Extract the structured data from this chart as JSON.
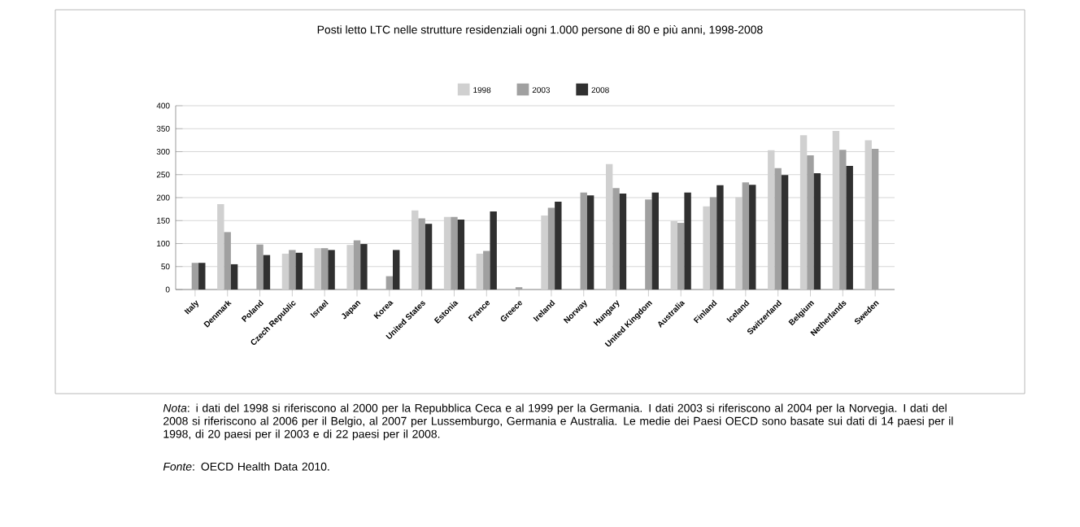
{
  "chart_data": {
    "type": "bar",
    "title": "Posti letto LTC nelle strutture residenziali ogni 1.000 persone di 80 e più anni, 1998-2008",
    "categories": [
      "Italy",
      "Denmark",
      "Poland",
      "Czech Republic",
      "Israel",
      "Japan",
      "Korea",
      "United States",
      "Estonia",
      "France",
      "Greece",
      "Ireland",
      "Norway",
      "Hungary",
      "United Kingdom",
      "Australia",
      "Finland",
      "Iceland",
      "Switzerland",
      "Belgium",
      "Netherlands",
      "Sweden"
    ],
    "series": [
      {
        "name": "1998",
        "color": "#d0d0d0",
        "values": [
          null,
          186,
          null,
          78,
          90,
          97,
          null,
          172,
          158,
          78,
          null,
          161,
          null,
          273,
          null,
          149,
          181,
          201,
          303,
          336,
          345,
          325
        ]
      },
      {
        "name": "2003",
        "color": "#a0a0a0",
        "values": [
          58,
          125,
          98,
          86,
          90,
          107,
          29,
          155,
          158,
          84,
          5,
          178,
          211,
          221,
          196,
          145,
          201,
          233,
          264,
          292,
          304,
          306
        ]
      },
      {
        "name": "2008",
        "color": "#303030",
        "values": [
          58,
          55,
          75,
          80,
          86,
          99,
          86,
          143,
          152,
          170,
          null,
          191,
          205,
          209,
          211,
          211,
          227,
          228,
          249,
          253,
          269,
          null
        ]
      }
    ],
    "ylim": [
      0,
      400
    ],
    "yticks": [
      0,
      50,
      100,
      150,
      200,
      250,
      300,
      350,
      400
    ],
    "grid": "y",
    "legend": "top",
    "annotations": [
      "*Nota*: i dati del 1998 si riferiscono al 2000 per la Repubblica Ceca e al 1999 per la Germania. I dati 2003 si riferiscono al 2004 per la Norvegia. I dati del 2008 si riferiscono al 2006 per il Belgio, al 2007 per Lussemburgo, Germania e Australia. Le medie dei Paesi OECD sono basate sui dati di 14 paesi per il 1998, di 20 paesi per il 2003 e di 22 paesi per il 2008.",
      "*Fonte*: OECD Health Data 2010."
    ]
  }
}
